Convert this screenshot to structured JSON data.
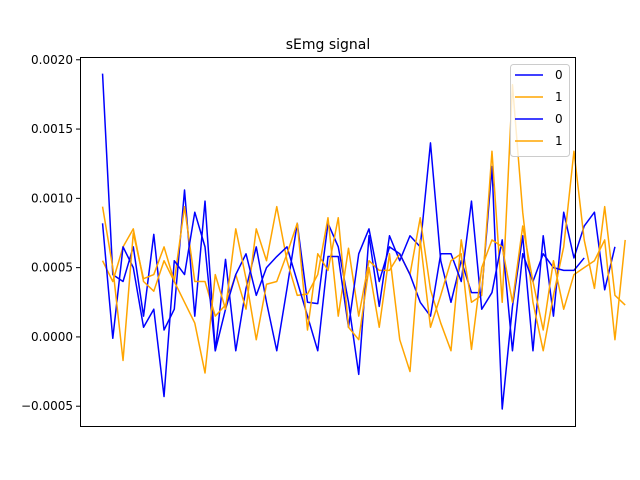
{
  "chart_data": {
    "type": "line",
    "title": "sEmg signal",
    "xlabel": "",
    "ylabel": "",
    "ylim": [
      -0.00065,
      0.00202
    ],
    "xlim": [
      -2.2,
      46.2
    ],
    "x_ticks_visible": false,
    "grid": false,
    "legend_position": "top-right",
    "y_ticks": [
      {
        "value": -0.0005,
        "label": "−0.0005"
      },
      {
        "value": 0.0,
        "label": "0.0000"
      },
      {
        "value": 0.0005,
        "label": "0.0005"
      },
      {
        "value": 0.001,
        "label": "0.0010"
      },
      {
        "value": 0.0015,
        "label": "0.0015"
      },
      {
        "value": 0.002,
        "label": "0.0020"
      }
    ],
    "series": [
      {
        "name": "0",
        "color": "#0000ff",
        "values": [
          0.0019,
          0.00045,
          0.0004,
          0.00065,
          0.00015,
          0.00074,
          5e-05,
          0.0002,
          0.00106,
          0.00015,
          0.00098,
          -0.0001,
          0.00056,
          -0.0001,
          0.00035,
          0.00065,
          0.00025,
          -0.0001,
          0.00035,
          0.00082,
          0.00025,
          0.00024,
          0.00082,
          0.00065,
          0.00025,
          -0.00027,
          0.00073,
          0.00022,
          0.00073,
          0.00055,
          0.00073,
          0.00065,
          0.0014,
          0.00055,
          0.00025,
          0.00055,
          0.00032,
          0.00032,
          0.00123,
          -0.00052,
          0.00022,
          0.00073,
          -0.0001,
          0.00073,
          0.00015,
          0.0009,
          0.00057,
          0.0008,
          0.0009,
          0.00034,
          0.00065
        ]
      },
      {
        "name": "1",
        "color": "#ffa500",
        "values": [
          0.00055,
          0.0004,
          0.00065,
          0.00078,
          0.0004,
          0.00033,
          0.00055,
          0.0004,
          0.00094,
          0.0004,
          0.0004,
          0.00015,
          0.00023,
          0.00045,
          0.0002,
          0.00078,
          0.00055,
          0.00094,
          0.00055,
          0.0003,
          0.00031,
          0.00045,
          0.00086,
          0.00015,
          0.00064,
          0.00015,
          0.00055,
          0.00048,
          0.00048,
          0.0006,
          0.00045,
          0.00086,
          0.00034,
          0.0001,
          -0.0001,
          0.0007,
          0.00025,
          0.0003,
          0.00134,
          0.00025,
          0.00182,
          0.0009,
          0.00025,
          -0.0001,
          0.0003,
          0.00065,
          0.00134,
          0.0007,
          0.00035,
          0.00094,
          0.0003,
          0.00023
        ]
      },
      {
        "name": "0",
        "color": "#0000ff",
        "values": [
          0.00082,
          -1e-05,
          0.00065,
          0.0005,
          7e-05,
          0.0002,
          -0.00043,
          0.00055,
          0.00045,
          0.0009,
          0.00065,
          -0.0001,
          0.0002,
          0.00045,
          0.0006,
          0.0003,
          0.0005,
          0.00058,
          0.00065,
          0.0004,
          0.00015,
          -0.0001,
          0.00058,
          0.00058,
          7e-05,
          0.0006,
          0.00078,
          0.0004,
          0.00065,
          0.0006,
          0.00045,
          0.00025,
          0.00015,
          0.0006,
          0.0006,
          0.0004,
          0.00098,
          0.0002,
          0.00032,
          0.0007,
          -0.0001,
          0.0006,
          0.0004,
          0.0006,
          0.0005,
          0.00048,
          0.00048,
          0.00057
        ]
      },
      {
        "name": "1",
        "color": "#ffa500",
        "values": [
          0.00094,
          0.0005,
          -0.00017,
          0.00075,
          0.00042,
          0.00045,
          0.00065,
          0.0004,
          0.00025,
          0.0001,
          -0.00026,
          0.00045,
          0.0002,
          0.00078,
          0.00042,
          -2e-05,
          0.00038,
          0.0004,
          0.0006,
          0.00082,
          5e-05,
          0.0006,
          0.00048,
          0.00086,
          7e-05,
          -2e-05,
          0.0005,
          7e-05,
          0.0006,
          -2e-05,
          -0.00025,
          0.0007,
          7e-05,
          0.0003,
          0.00055,
          0.0006,
          -9e-05,
          0.0005,
          0.0007,
          0.00065,
          0.00025,
          0.0008,
          0.0004,
          5e-05,
          0.00055,
          0.0002,
          0.00045,
          0.0005,
          0.00055,
          0.0007,
          -2e-05,
          0.0007
        ]
      }
    ]
  }
}
